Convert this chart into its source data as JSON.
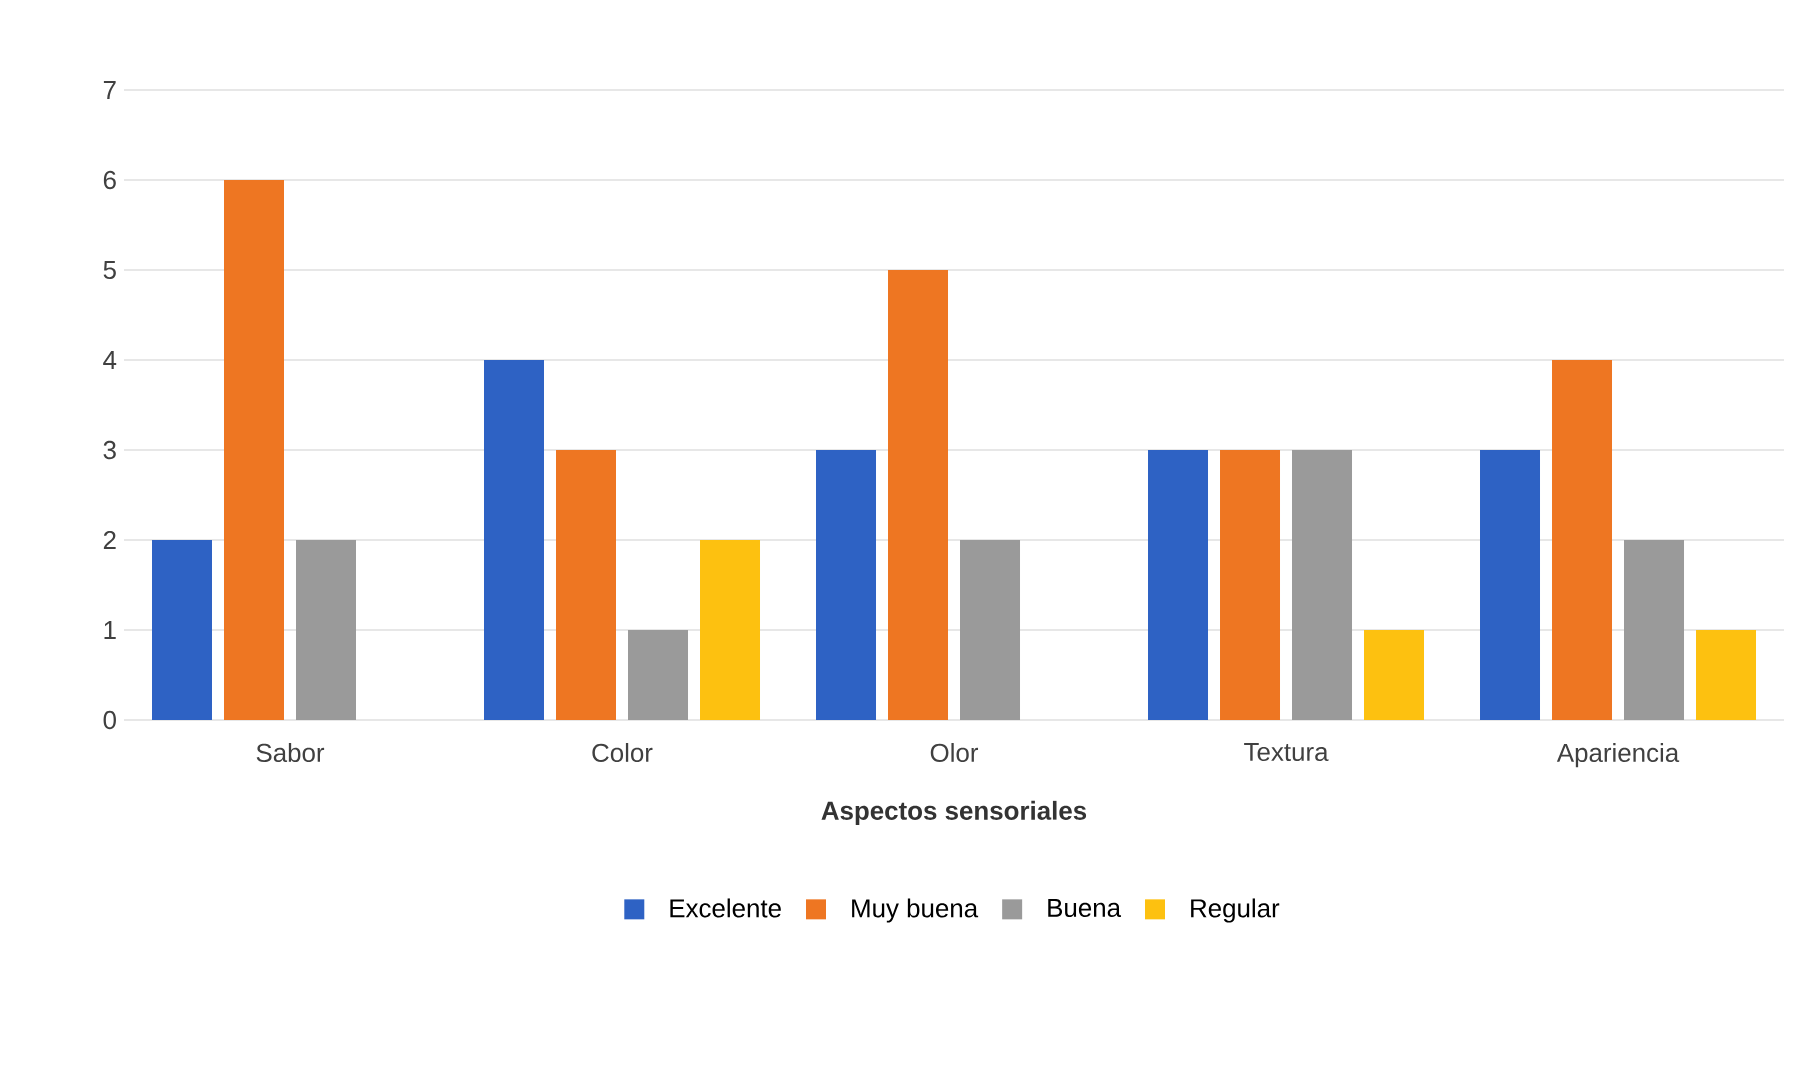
{
  "chart_data": {
    "type": "bar",
    "xlabel": "Aspectos sensoriales",
    "categories": [
      "Sabor",
      "Color",
      "Olor",
      "Textura",
      "Apariencia"
    ],
    "series": [
      {
        "name": "Excelente",
        "color": "#2e62c4",
        "values": [
          2,
          4,
          3,
          3,
          3
        ]
      },
      {
        "name": "Muy buena",
        "color": "#ee7622",
        "values": [
          6,
          3,
          5,
          3,
          4
        ]
      },
      {
        "name": "Buena",
        "color": "#9a9a9a",
        "values": [
          2,
          1,
          2,
          3,
          2
        ]
      },
      {
        "name": "Regular",
        "color": "#fdc110",
        "values": [
          0,
          2,
          0,
          1,
          1
        ]
      }
    ],
    "ylim": [
      0,
      7
    ],
    "yticks": [
      0,
      1,
      2,
      3,
      4,
      5,
      6,
      7
    ],
    "grid": "y",
    "legend": "bottom"
  }
}
